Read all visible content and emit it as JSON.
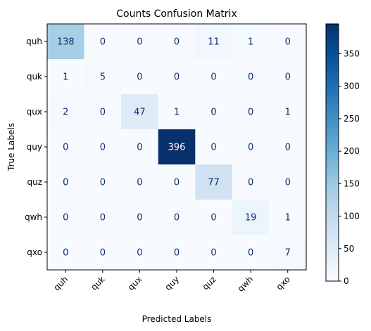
{
  "chart_data": {
    "type": "heatmap",
    "title": "Counts Confusion Matrix",
    "xlabel": "Predicted Labels",
    "ylabel": "True Labels",
    "x_categories": [
      "quh",
      "quk",
      "qux",
      "quy",
      "quz",
      "qwh",
      "qxo"
    ],
    "y_categories": [
      "quh",
      "quk",
      "qux",
      "quy",
      "quz",
      "qwh",
      "qxo"
    ],
    "values": [
      [
        138,
        0,
        0,
        0,
        11,
        1,
        0
      ],
      [
        1,
        5,
        0,
        0,
        0,
        0,
        0
      ],
      [
        2,
        0,
        47,
        1,
        0,
        0,
        1
      ],
      [
        0,
        0,
        0,
        396,
        0,
        0,
        0
      ],
      [
        0,
        0,
        0,
        0,
        77,
        0,
        0
      ],
      [
        0,
        0,
        0,
        0,
        0,
        19,
        1
      ],
      [
        0,
        0,
        0,
        0,
        0,
        0,
        7
      ]
    ],
    "colormap": "Blues",
    "vmin": 0,
    "vmax": 396,
    "colorbar_ticks": [
      0,
      50,
      100,
      150,
      200,
      250,
      300,
      350
    ],
    "colorbar_tick_labels": [
      "0",
      "50",
      "100",
      "150",
      "200",
      "250",
      "300",
      "350"
    ]
  }
}
